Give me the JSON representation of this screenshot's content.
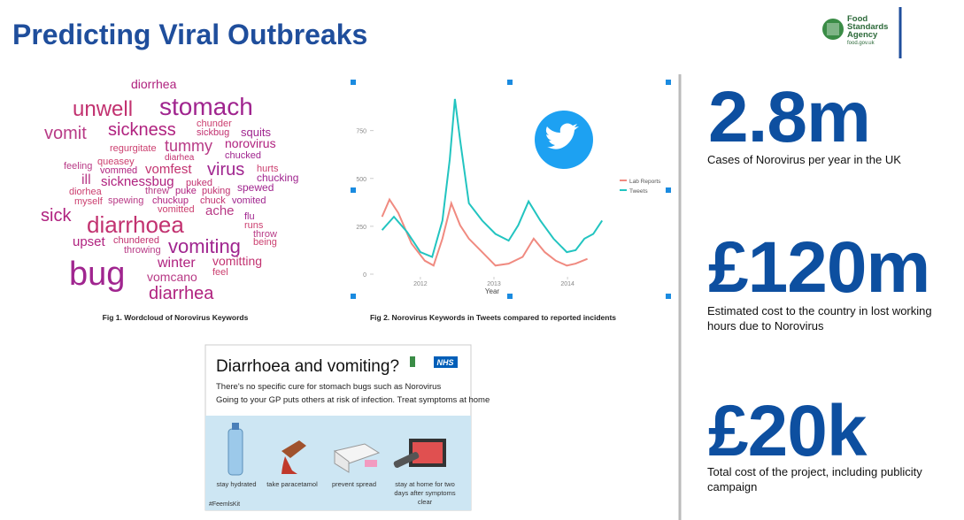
{
  "header": {
    "title": "Predicting Viral Outbreaks",
    "logo": [
      "Food",
      "Standards",
      "Agency",
      "food.gov.uk"
    ]
  },
  "wordcloud": {
    "words": [
      "diorrhea",
      "unwell",
      "stomach",
      "chunder",
      "vomit",
      "sickness",
      "sickbug",
      "squits",
      "regurgitate",
      "tummy",
      "norovirus",
      "diarhea",
      "chucked",
      "queasey",
      "feeling",
      "vommed",
      "vomfest",
      "virus",
      "hurts",
      "ill",
      "sicknessbug",
      "puked",
      "chucking",
      "diorhea",
      "threw",
      "puke",
      "puking",
      "spewed",
      "myself",
      "spewing",
      "chuckup",
      "chuck",
      "vomited",
      "vomitted",
      "ache",
      "sick",
      "diarrhoea",
      "flu",
      "runs",
      "throw",
      "upset",
      "chundered",
      "vomiting",
      "being",
      "throwing",
      "winter",
      "vomitting",
      "bug",
      "feel",
      "vomcano",
      "diarrhea"
    ],
    "caption": "Fig 1. Wordcloud of Norovirus Keywords"
  },
  "chart_data": {
    "type": "line",
    "caption": "Fig 2. Norovirus Keywords in Tweets compared to reported incidents",
    "x_label": "Year",
    "xlim": [
      2011.4,
      2014.6
    ],
    "xticks": [
      2012,
      2013,
      2014
    ],
    "ylim": [
      0,
      970
    ],
    "yticks": [
      0,
      250,
      500,
      750
    ],
    "legend": "right",
    "series": [
      {
        "name": "Lab Reports",
        "color": "#f08a80",
        "x": [
          2011.48,
          2011.58,
          2011.7,
          2011.88,
          2012.06,
          2012.18,
          2012.3,
          2012.42,
          2012.54,
          2012.66,
          2012.84,
          2013.02,
          2013.2,
          2013.39,
          2013.54,
          2013.69,
          2013.84,
          2013.99,
          2014.11,
          2014.27
        ],
        "values": [
          300,
          390,
          320,
          160,
          70,
          45,
          185,
          370,
          255,
          185,
          115,
          45,
          55,
          90,
          185,
          115,
          70,
          45,
          55,
          80
        ]
      },
      {
        "name": "Tweets",
        "color": "#22c4c0",
        "x": [
          2011.48,
          2011.64,
          2011.82,
          2012.0,
          2012.16,
          2012.3,
          2012.4,
          2012.47,
          2012.54,
          2012.66,
          2012.84,
          2013.02,
          2013.2,
          2013.33,
          2013.47,
          2013.63,
          2013.81,
          2013.99,
          2014.11,
          2014.23,
          2014.35,
          2014.47
        ],
        "values": [
          230,
          300,
          220,
          115,
          90,
          280,
          600,
          915,
          700,
          370,
          280,
          210,
          175,
          255,
          380,
          280,
          185,
          115,
          125,
          185,
          210,
          280
        ]
      }
    ]
  },
  "poster": {
    "title": "Diarrhoea and vomiting?",
    "badge": "NHS",
    "lines": [
      "There's no specific cure for stomach bugs such as Norovirus",
      "Going to your GP puts others at risk of infection. Treat symptoms at home"
    ],
    "items": [
      "stay hydrated",
      "take paracetamol",
      "prevent spread",
      "stay at home for two days after symptoms clear"
    ],
    "hashtag": "#FeemlsKit"
  },
  "stats": [
    {
      "value": "2.8m",
      "label": "Cases of Norovirus per year in the UK"
    },
    {
      "value": "£120m",
      "label": "Estimated cost to the country in lost working hours due to Norovirus"
    },
    {
      "value": "£20k",
      "label": "Total cost of the project, including publicity campaign"
    }
  ]
}
